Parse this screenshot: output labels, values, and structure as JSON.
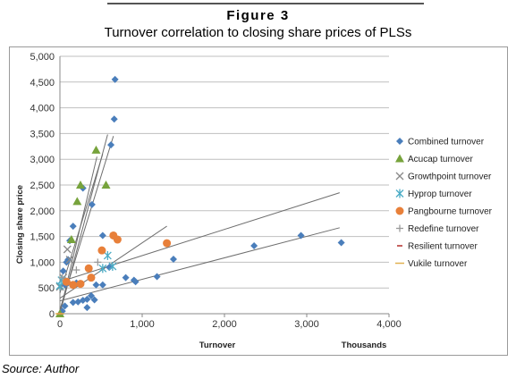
{
  "figure": {
    "heading": "Figure 3",
    "title": "Turnover correlation to closing share prices of PLSs",
    "source": "Source: Author"
  },
  "colors": {
    "combined": "#4a7ebb",
    "acucap": "#77a33c",
    "growthpoint": "#8a8a8a",
    "hyprop": "#4bacc6",
    "pangbourne": "#e8803a",
    "redefine": "#9a9a9a",
    "resilient": "#c0504d",
    "vukile": "#e0b050",
    "grid": "#bfbfbf",
    "trendline": "#6e6e6e"
  },
  "chart_data": {
    "type": "scatter",
    "xlabel": "Turnover",
    "xunit_label": "Thousands",
    "ylabel": "Closing share price",
    "xlim": [
      0,
      4000
    ],
    "ylim": [
      0,
      5000
    ],
    "x_ticks": [
      "0",
      "1,000",
      "2,000",
      "3,000",
      "4,000"
    ],
    "y_ticks": [
      "0",
      "500",
      "1,000",
      "1,500",
      "2,000",
      "2,500",
      "3,000",
      "3,500",
      "4,000",
      "4,500",
      "5,000"
    ],
    "grid": "horizontal",
    "legend_position": "right",
    "series": [
      {
        "name": "Combined turnover",
        "marker": "diamond",
        "color_key": "combined",
        "points": [
          [
            670,
            4550
          ],
          [
            660,
            3780
          ],
          [
            620,
            3280
          ],
          [
            280,
            2440
          ],
          [
            390,
            2120
          ],
          [
            160,
            1700
          ],
          [
            120,
            1420
          ],
          [
            520,
            1520
          ],
          [
            1380,
            1060
          ],
          [
            2360,
            1320
          ],
          [
            2930,
            1520
          ],
          [
            3420,
            1380
          ],
          [
            100,
            1050
          ],
          [
            80,
            1000
          ],
          [
            40,
            830
          ],
          [
            600,
            900
          ],
          [
            60,
            560
          ],
          [
            100,
            600
          ],
          [
            200,
            600
          ],
          [
            440,
            560
          ],
          [
            520,
            560
          ],
          [
            800,
            700
          ],
          [
            900,
            650
          ],
          [
            920,
            620
          ],
          [
            1180,
            720
          ],
          [
            220,
            230
          ],
          [
            280,
            260
          ],
          [
            330,
            280
          ],
          [
            420,
            270
          ],
          [
            380,
            350
          ],
          [
            330,
            120
          ],
          [
            160,
            220
          ],
          [
            60,
            150
          ],
          [
            30,
            50
          ],
          [
            10,
            0
          ]
        ]
      },
      {
        "name": "Acucap turnover",
        "marker": "triangle",
        "color_key": "acucap",
        "points": [
          [
            440,
            3180
          ],
          [
            250,
            2500
          ],
          [
            560,
            2500
          ],
          [
            210,
            2180
          ],
          [
            140,
            1440
          ],
          [
            0,
            0
          ]
        ]
      },
      {
        "name": "Growthpoint turnover",
        "marker": "x",
        "color_key": "growthpoint",
        "points": [
          [
            120,
            1050
          ],
          [
            90,
            1250
          ],
          [
            40,
            700
          ],
          [
            0,
            520
          ]
        ]
      },
      {
        "name": "Hyprop turnover",
        "marker": "asterisk",
        "color_key": "hyprop",
        "points": [
          [
            580,
            1130
          ],
          [
            640,
            920
          ],
          [
            520,
            880
          ],
          [
            20,
            650
          ],
          [
            0,
            540
          ]
        ]
      },
      {
        "name": "Pangbourne turnover",
        "marker": "circle",
        "color_key": "pangbourne",
        "points": [
          [
            650,
            1520
          ],
          [
            700,
            1440
          ],
          [
            510,
            1230
          ],
          [
            1300,
            1370
          ],
          [
            350,
            880
          ],
          [
            80,
            620
          ],
          [
            160,
            560
          ],
          [
            250,
            580
          ],
          [
            380,
            700
          ]
        ]
      },
      {
        "name": "Redefine turnover",
        "marker": "plus",
        "color_key": "redefine",
        "points": [
          [
            460,
            1000
          ],
          [
            200,
            850
          ],
          [
            30,
            700
          ]
        ]
      },
      {
        "name": "Resilient turnover",
        "marker": "dash",
        "color_key": "resilient",
        "points": [
          [
            0,
            0
          ]
        ]
      },
      {
        "name": "Vukile turnover",
        "marker": "hline",
        "color_key": "vukile",
        "points": [
          [
            0,
            0
          ]
        ]
      }
    ],
    "trendlines": [
      {
        "from": [
          0,
          0
        ],
        "to": [
          580,
          3480
        ]
      },
      {
        "from": [
          0,
          80
        ],
        "to": [
          650,
          3450
        ]
      },
      {
        "from": [
          0,
          400
        ],
        "to": [
          520,
          3100
        ]
      },
      {
        "from": [
          0,
          20
        ],
        "to": [
          450,
          3050
        ]
      },
      {
        "from": [
          0,
          300
        ],
        "to": [
          1300,
          1700
        ]
      },
      {
        "from": [
          0,
          620
        ],
        "to": [
          3400,
          2350
        ]
      },
      {
        "from": [
          0,
          250
        ],
        "to": [
          3400,
          1670
        ]
      }
    ]
  }
}
